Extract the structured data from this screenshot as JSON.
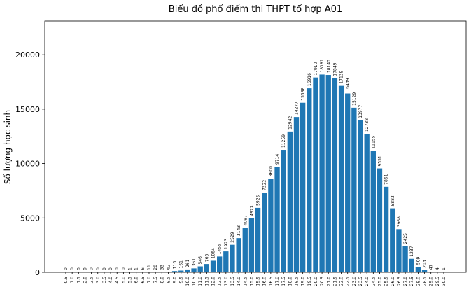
{
  "chart_data": {
    "type": "bar",
    "title": "Biểu đồ phổ điểm thi THPT tổ hợp A01",
    "y_label": "Số lượng học sinh",
    "categories": [
      "0.5",
      "1.0",
      "1.5",
      "2.0",
      "2.5",
      "3.0",
      "3.5",
      "4.0",
      "4.5",
      "5.0",
      "5.5",
      "6.0",
      "6.5",
      "7.0",
      "7.5",
      "8.0",
      "8.5",
      "9.0",
      "9.5",
      "10.0",
      "10.5",
      "11.0",
      "11.5",
      "12.0",
      "12.5",
      "13.0",
      "13.5",
      "14.0",
      "14.5",
      "15.0",
      "15.5",
      "16.0",
      "16.5",
      "17.0",
      "17.5",
      "18.0",
      "18.5",
      "19.0",
      "19.5",
      "20.0",
      "20.5",
      "21.0",
      "21.5",
      "22.0",
      "22.5",
      "23.0",
      "23.5",
      "24.0",
      "24.5",
      "25.0",
      "25.5",
      "26.0",
      "26.5",
      "27.0",
      "27.5",
      "28.0",
      "28.5",
      "29.0",
      "29.5",
      "30.0"
    ],
    "values": [
      0,
      0,
      0,
      0,
      0,
      0,
      0,
      0,
      0,
      0,
      1,
      1,
      6,
      11,
      20,
      33,
      62,
      116,
      161,
      261,
      361,
      546,
      766,
      1064,
      1455,
      1923,
      2529,
      3143,
      4087,
      4973,
      5925,
      7322,
      8600,
      9714,
      11259,
      12942,
      14277,
      15588,
      16916,
      17910,
      18181,
      18143,
      17849,
      17139,
      16439,
      15129,
      13977,
      12738,
      11155,
      9551,
      7861,
      5883,
      3968,
      2425,
      1237,
      509,
      203,
      47,
      4,
      1
    ],
    "color": "#1f77b4",
    "ylim": [
      0,
      23100
    ],
    "yticks": [
      0,
      5000,
      10000,
      15000,
      20000
    ]
  }
}
